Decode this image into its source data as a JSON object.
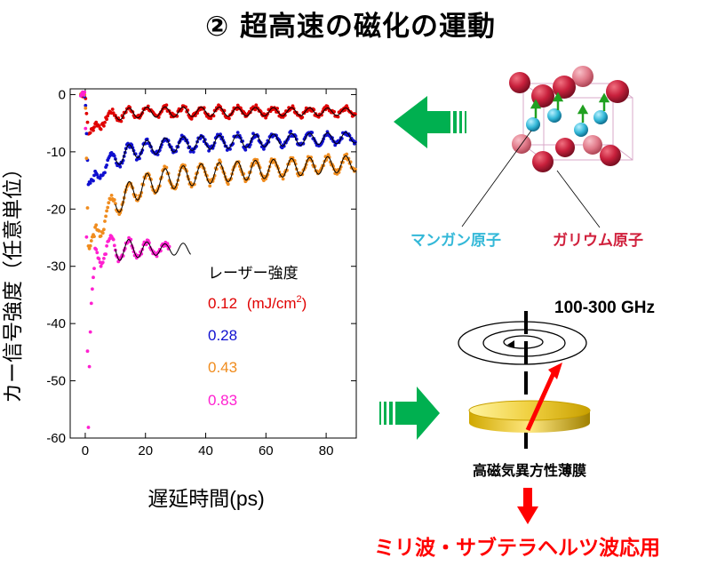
{
  "title": "② 超高速の磁化の運動",
  "chart_data": {
    "type": "scatter",
    "xlabel": "遅延時間(ps)",
    "ylabel": "カー信号強度（任意単位）",
    "xlim": [
      -5,
      90
    ],
    "ylim": [
      -60,
      1
    ],
    "x_ticks": [
      0,
      20,
      40,
      60,
      80
    ],
    "y_ticks": [
      0,
      -10,
      -20,
      -30,
      -40,
      -50,
      -60
    ],
    "legend_title": "レーザー強度",
    "grid": false,
    "series": [
      {
        "name": "0.12",
        "color": "#e00000",
        "floor": -7,
        "baseline": -3,
        "amp": 1.0,
        "period": 6,
        "decay": 200,
        "recover": 30,
        "drift": 0,
        "tmax": 90,
        "fit": true
      },
      {
        "name": "0.28",
        "color": "#1010d0",
        "floor": -16,
        "baseline": -9,
        "amp": 1.5,
        "period": 6,
        "decay": 200,
        "recover": 50,
        "drift": 1.5,
        "tmax": 90,
        "fit": true
      },
      {
        "name": "0.43",
        "color": "#f08c1e",
        "floor": -27,
        "baseline": -15,
        "amp": 2.2,
        "period": 6,
        "decay": 200,
        "recover": 55,
        "drift": 3,
        "tmax": 90,
        "fit": true
      },
      {
        "name": "0.83",
        "color": "#ff20d0",
        "floor": -60,
        "baseline": -27,
        "amp": 3.5,
        "period": 6,
        "decay": 20,
        "recover": 5,
        "drift": 0,
        "tmax": 28,
        "fit": true
      }
    ],
    "legend_units": "(mJ/cm",
    "legend_units_sup": "2",
    "legend_units_close": ")"
  },
  "diagram": {
    "manganese_label": "マンガン原子",
    "gallium_label": "ガリウム原子",
    "frequency_label": "100-300 GHz",
    "film_label": "高磁気異方性薄膜",
    "application_label": "ミリ波・サブテラヘルツ波応用",
    "colors": {
      "arrow_green": "#00b050",
      "arrow_red": "#ff0000",
      "manganese": "#33b8d8",
      "gallium": "#c8203c"
    }
  }
}
